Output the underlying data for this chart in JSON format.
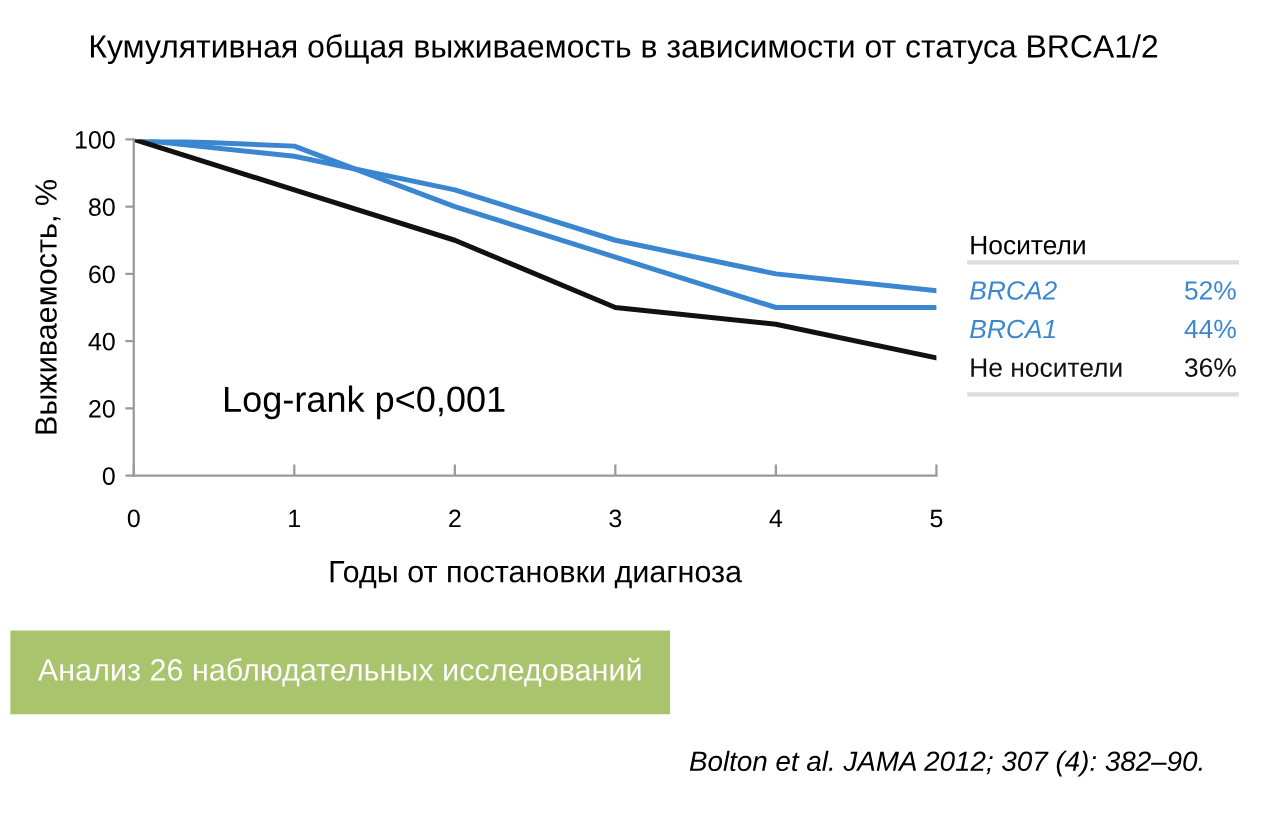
{
  "chart_data": {
    "type": "line",
    "title": "Кумулятивная общая выживаемость в зависимости от статуса BRCA1/2",
    "xlabel": "Годы от постановки диагноза",
    "ylabel": "Выживаемость, %",
    "legend_title": "Носители",
    "x": [
      0,
      1,
      2,
      3,
      4,
      5
    ],
    "series": [
      {
        "name": "BRCA2",
        "color": "#3a86d0",
        "values": [
          100,
          95,
          85,
          70,
          60,
          55
        ]
      },
      {
        "name": "BRCA1",
        "color": "#3a86d0",
        "values": [
          100,
          98,
          80,
          65,
          50,
          50
        ]
      },
      {
        "name": "Не носители",
        "color": "#111111",
        "values": [
          100,
          85,
          70,
          50,
          45,
          35
        ]
      }
    ],
    "annotations": [
      "Log-rank p<0,001",
      "Анализ 26 наблюдательных исследований",
      "Bolton et al. JAMA 2012; 307 (4): 382–90.",
      "52%",
      "44%",
      "36%"
    ],
    "xlim": [
      0,
      5
    ],
    "xticks": [
      0,
      1,
      2,
      3,
      4,
      5
    ],
    "ylim": [
      0,
      100
    ],
    "yticks": [
      0,
      20,
      40,
      60,
      80,
      100
    ],
    "grid": false,
    "legend": "right",
    "marker": "none",
    "line_style": "solid"
  }
}
